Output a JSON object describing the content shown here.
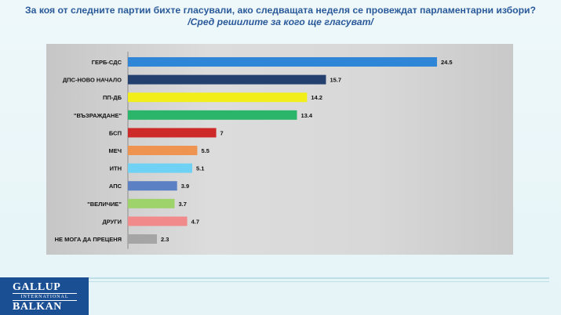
{
  "title": {
    "line1": "За коя от следните партии бихте  гласували,  ако следващата неделя се провеждат парламентарни избори?",
    "line2": "/Сред решилите за кого ще гласуват/"
  },
  "logo": {
    "top": "GALLUP",
    "middle": "INTERNATIONAL",
    "bottom": "BALKAN"
  },
  "chart_data": {
    "type": "bar",
    "orientation": "horizontal",
    "categories": [
      "ГЕРБ-СДС",
      "ДПС-НОВО НАЧАЛО",
      "ПП-ДБ",
      "\"ВЪЗРАЖДАНЕ\"",
      "БСП",
      "МЕЧ",
      "ИТН",
      "АПС",
      "\"ВЕЛИЧИЕ\"",
      "ДРУГИ",
      "НЕ МОГА ДА ПРЕЦЕНЯ"
    ],
    "values": [
      24.5,
      15.7,
      14.2,
      13.4,
      7,
      5.5,
      5.1,
      3.9,
      3.7,
      4.7,
      2.3
    ],
    "value_labels": [
      "24.5",
      "15.7",
      "14.2",
      "13.4",
      "7",
      "5.5",
      "5.1",
      "3.9",
      "3.7",
      "4.7",
      "2.3"
    ],
    "colors": [
      "#2f86d6",
      "#24406f",
      "#f2ee1a",
      "#2ab56b",
      "#cf2a2a",
      "#ef9450",
      "#6fd1f3",
      "#5b80c4",
      "#9ed26a",
      "#f18b8b",
      "#a5a5a5"
    ],
    "xlim": [
      0,
      26
    ],
    "grid": false,
    "legend": "none"
  }
}
